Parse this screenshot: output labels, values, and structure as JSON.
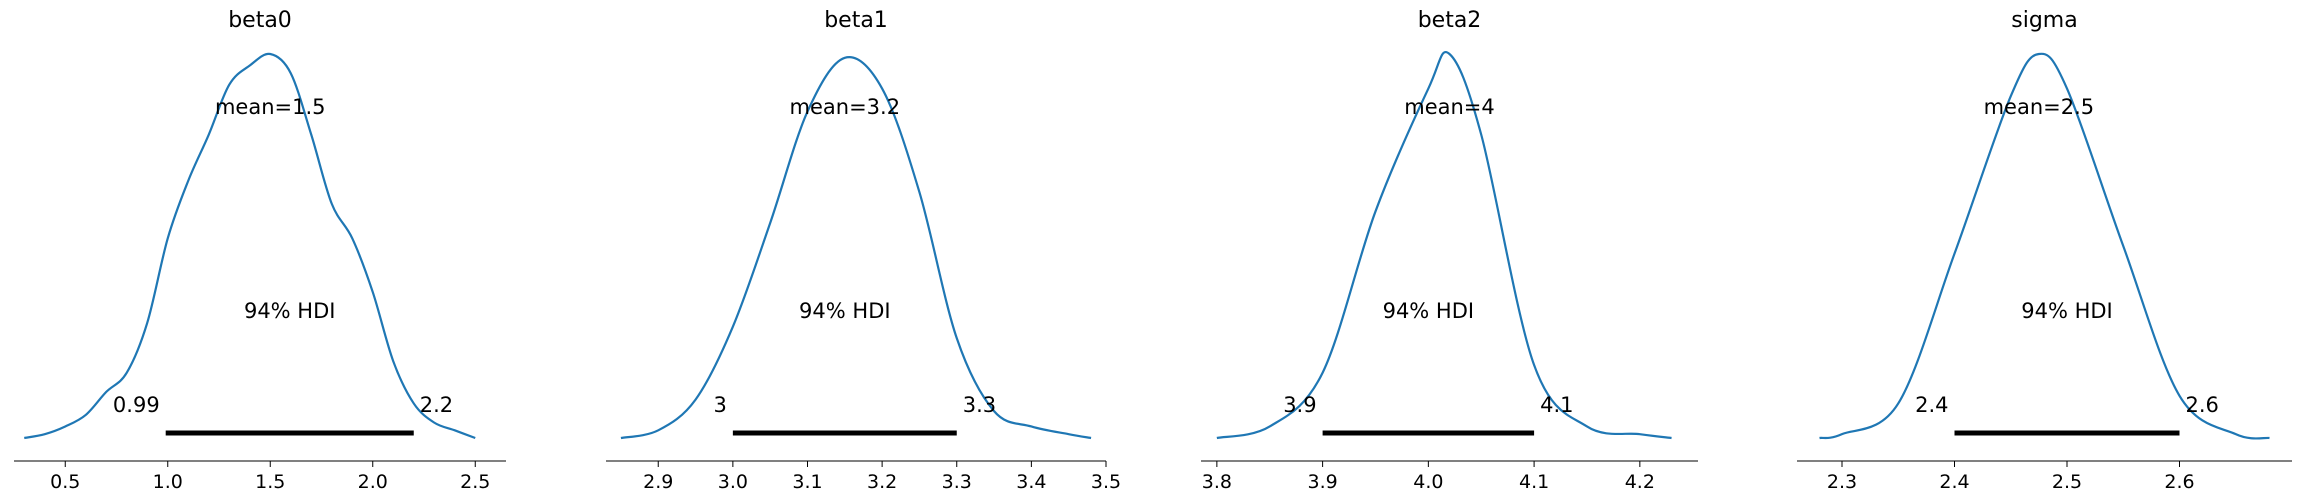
{
  "chart_data": [
    {
      "type": "area",
      "title": "beta0",
      "mean_label": "mean=1.5",
      "hdi_label": "94% HDI",
      "hdi": [
        0.99,
        2.2
      ],
      "hdi_low_label": "0.99",
      "hdi_high_label": "2.2",
      "xlim": [
        0.25,
        2.65
      ],
      "xticks": [
        0.5,
        1.0,
        1.5,
        2.0,
        2.5
      ],
      "xtick_labels": [
        "0.5",
        "1.0",
        "1.5",
        "2.0",
        "2.5"
      ],
      "density": {
        "x": [
          0.3,
          0.4,
          0.5,
          0.6,
          0.7,
          0.8,
          0.9,
          1.0,
          1.1,
          1.2,
          1.3,
          1.4,
          1.5,
          1.6,
          1.7,
          1.8,
          1.9,
          2.0,
          2.1,
          2.2,
          2.3,
          2.4,
          2.5
        ],
        "y": [
          0.0,
          0.01,
          0.03,
          0.06,
          0.12,
          0.17,
          0.3,
          0.52,
          0.67,
          0.79,
          0.92,
          0.97,
          1.0,
          0.95,
          0.79,
          0.61,
          0.52,
          0.38,
          0.2,
          0.09,
          0.04,
          0.02,
          0.0
        ]
      }
    },
    {
      "type": "area",
      "title": "beta1",
      "mean_label": "mean=3.2",
      "hdi_label": "94% HDI",
      "hdi": [
        3,
        3.3
      ],
      "hdi_low_label": "3",
      "hdi_high_label": "3.3",
      "xlim": [
        2.83,
        3.5
      ],
      "xticks": [
        2.9,
        3.0,
        3.1,
        3.2,
        3.3,
        3.4,
        3.5
      ],
      "xtick_labels": [
        "2.9",
        "3.0",
        "3.1",
        "3.2",
        "3.3",
        "3.4",
        "3.5"
      ],
      "density": {
        "x": [
          2.85,
          2.9,
          2.95,
          3.0,
          3.05,
          3.1,
          3.15,
          3.2,
          3.25,
          3.3,
          3.35,
          3.4,
          3.45,
          3.48
        ],
        "y": [
          0.0,
          0.02,
          0.1,
          0.29,
          0.56,
          0.85,
          0.99,
          0.91,
          0.64,
          0.26,
          0.07,
          0.03,
          0.01,
          0.0
        ]
      }
    },
    {
      "type": "area",
      "title": "beta2",
      "mean_label": "mean=4",
      "hdi_label": "94% HDI",
      "hdi": [
        3.9,
        4.1
      ],
      "hdi_low_label": "3.9",
      "hdi_high_label": "4.1",
      "xlim": [
        3.785,
        4.255
      ],
      "xticks": [
        3.8,
        3.9,
        4.0,
        4.1,
        4.2
      ],
      "xtick_labels": [
        "3.8",
        "3.9",
        "4.0",
        "4.1",
        "4.2"
      ],
      "density": {
        "x": [
          3.8,
          3.85,
          3.9,
          3.95,
          4.0,
          4.02,
          4.05,
          4.1,
          4.15,
          4.2,
          4.23
        ],
        "y": [
          0.0,
          0.03,
          0.17,
          0.59,
          0.91,
          1.0,
          0.79,
          0.19,
          0.03,
          0.01,
          0.0
        ]
      }
    },
    {
      "type": "area",
      "title": "sigma",
      "mean_label": "mean=2.5",
      "hdi_label": "94% HDI",
      "hdi": [
        2.4,
        2.6
      ],
      "hdi_low_label": "2.4",
      "hdi_high_label": "2.6",
      "xlim": [
        2.26,
        2.7
      ],
      "xticks": [
        2.3,
        2.4,
        2.5,
        2.6
      ],
      "xtick_labels": [
        "2.3",
        "2.4",
        "2.5",
        "2.6"
      ],
      "density": {
        "x": [
          2.28,
          2.3,
          2.35,
          2.4,
          2.45,
          2.475,
          2.5,
          2.55,
          2.6,
          2.65,
          2.68
        ],
        "y": [
          0.0,
          0.01,
          0.09,
          0.48,
          0.89,
          1.0,
          0.91,
          0.5,
          0.11,
          0.01,
          0.0
        ]
      }
    }
  ],
  "style": {
    "line_color": "#1f77b4",
    "hdi_color": "#000000",
    "axis_color": "#000000"
  }
}
